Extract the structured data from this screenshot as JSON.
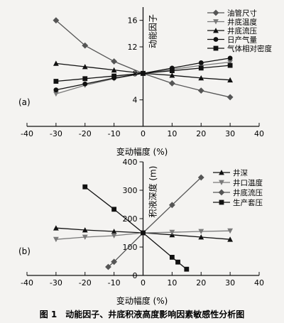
{
  "caption": "图 1　动能因子、井底积液高度影响因素敏感性分析图",
  "colors": {
    "axis": "#111111",
    "dark": "#111111",
    "gray": "#555555",
    "mid": "#7a7a7a"
  },
  "chart_data": [
    {
      "type": "line",
      "panel_label": "(a)",
      "xlabel": "变动幅度 (%)",
      "ylabel": "动能因子",
      "xlim": [
        -40,
        40
      ],
      "ylim": [
        0,
        18
      ],
      "xticks": [
        -40,
        -30,
        -20,
        -10,
        0,
        10,
        20,
        30,
        40
      ],
      "yticks": [
        4,
        8,
        12,
        16
      ],
      "grid": false,
      "legend_position": "top-right",
      "series": [
        {
          "name": "油管尺寸",
          "marker": "diamond",
          "shade": "gray",
          "x": [
            -30,
            -20,
            -10,
            0,
            10,
            20,
            30
          ],
          "y": [
            16.0,
            12.2,
            9.8,
            8.0,
            6.5,
            5.4,
            4.4
          ]
        },
        {
          "name": "井底温度",
          "marker": "triangle-down",
          "shade": "mid",
          "x": [
            -30,
            -20,
            -10,
            0,
            10,
            20,
            30
          ],
          "y": [
            4.9,
            6.2,
            7.2,
            8.0,
            8.6,
            9.2,
            9.7
          ]
        },
        {
          "name": "井底流压",
          "marker": "triangle",
          "shade": "dark",
          "x": [
            -30,
            -20,
            -10,
            0,
            10,
            20,
            30
          ],
          "y": [
            9.5,
            9.0,
            8.5,
            8.0,
            7.7,
            7.3,
            7.0
          ]
        },
        {
          "name": "日产气量",
          "marker": "circle",
          "shade": "dark",
          "x": [
            -30,
            -20,
            -10,
            0,
            10,
            20,
            30
          ],
          "y": [
            5.5,
            6.4,
            7.3,
            8.0,
            8.8,
            9.6,
            10.3
          ]
        },
        {
          "name": "气体相对密度",
          "marker": "square",
          "shade": "dark",
          "x": [
            -30,
            -20,
            -10,
            0,
            10,
            20,
            30
          ],
          "y": [
            6.8,
            7.2,
            7.6,
            8.0,
            8.4,
            8.8,
            9.2
          ]
        }
      ]
    },
    {
      "type": "line",
      "panel_label": "(b)",
      "xlabel": "变动幅度 (%)",
      "ylabel": "积液深度 (m)",
      "xlim": [
        -40,
        40
      ],
      "ylim": [
        0,
        400
      ],
      "xticks": [
        -40,
        -30,
        -20,
        -10,
        0,
        10,
        20,
        30,
        40
      ],
      "yticks": [
        0,
        100,
        200,
        300,
        400
      ],
      "grid": false,
      "legend_position": "top-right",
      "series": [
        {
          "name": "井深",
          "marker": "triangle",
          "shade": "dark",
          "x": [
            -30,
            -20,
            -10,
            0,
            10,
            20,
            30
          ],
          "y": [
            167,
            160,
            155,
            150,
            143,
            135,
            127
          ]
        },
        {
          "name": "井口温度",
          "marker": "triangle-down",
          "shade": "mid",
          "x": [
            -30,
            -20,
            -10,
            0,
            10,
            20,
            30
          ],
          "y": [
            127,
            135,
            140,
            150,
            152,
            155,
            157
          ]
        },
        {
          "name": "井底流压",
          "marker": "diamond",
          "shade": "gray",
          "x": [
            -12,
            -10,
            0,
            10,
            20
          ],
          "y": [
            30,
            48,
            150,
            248,
            345
          ]
        },
        {
          "name": "生产套压",
          "marker": "square",
          "shade": "dark",
          "x": [
            -20,
            -10,
            0,
            10,
            12,
            15
          ],
          "y": [
            312,
            233,
            150,
            64,
            47,
            22
          ]
        }
      ]
    }
  ]
}
